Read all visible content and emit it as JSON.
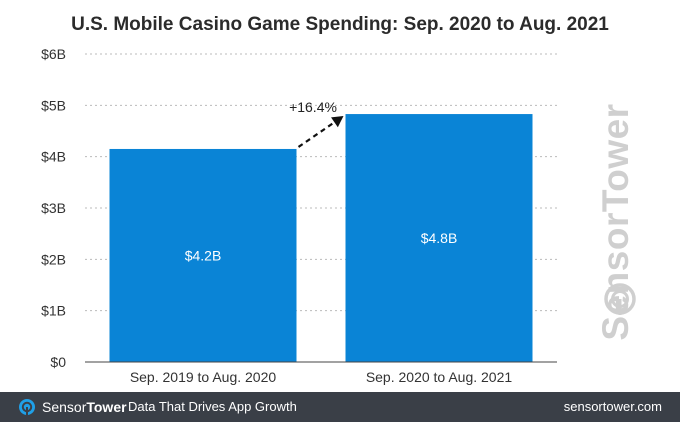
{
  "chart_data": {
    "type": "bar",
    "title": "U.S. Mobile Casino Game Spending: Sep. 2020 to Aug. 2021",
    "categories": [
      "Sep. 2019 to Aug. 2020",
      "Sep. 2020 to Aug. 2021"
    ],
    "values": [
      4.15,
      4.83
    ],
    "data_labels": [
      "$4.2B",
      "$4.8B"
    ],
    "ylim": [
      0,
      6
    ],
    "yticks": [
      0,
      1,
      2,
      3,
      4,
      5,
      6
    ],
    "ytick_labels": [
      "$0",
      "$1B",
      "$2B",
      "$3B",
      "$4B",
      "$5B",
      "$6B"
    ],
    "grid": true,
    "annotation": "+16.4%",
    "xlabel": "",
    "ylabel": "",
    "bar_color": "#0a84d6"
  },
  "watermark": {
    "text": "SensorTower"
  },
  "footer": {
    "brand_part1": "Sensor",
    "brand_part2": "Tower",
    "tagline": "Data That Drives App Growth",
    "url": "sensortower.com"
  },
  "colors": {
    "footer_bg": "#3a3f47",
    "grid": "#bbbbbb",
    "text": "#333333",
    "accent": "#0a84d6"
  }
}
